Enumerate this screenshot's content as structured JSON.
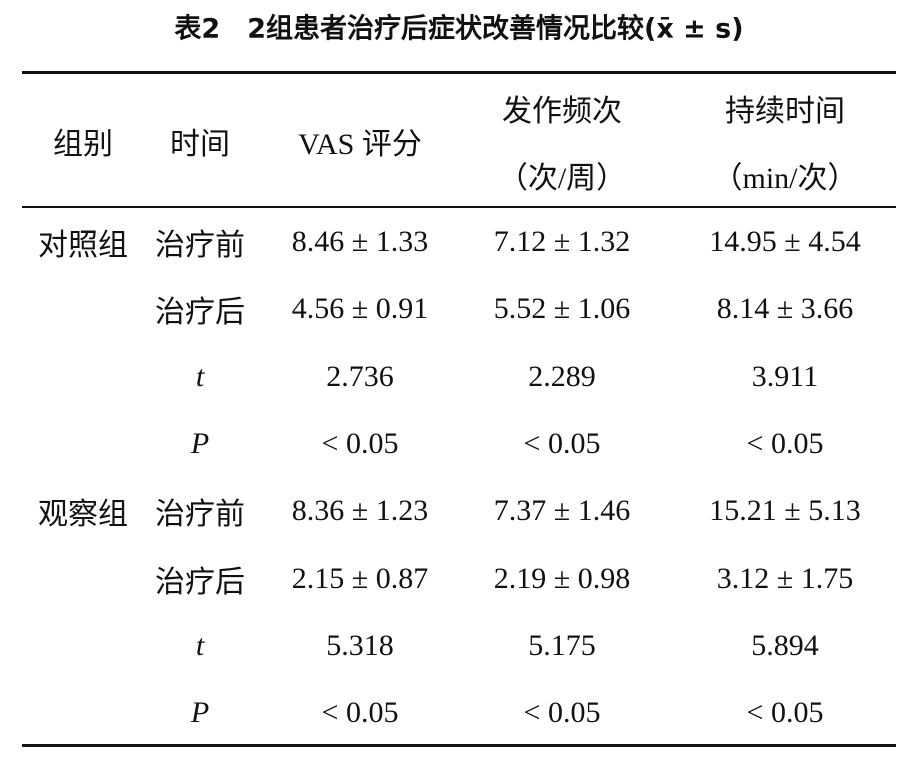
{
  "title": "表2　2组患者治疗后症状改善情况比较(x̄ ± s)",
  "table": {
    "header": {
      "group": "组别",
      "time": "时间",
      "vas": "VAS 评分",
      "freq": [
        "发作频次",
        "（次/周）"
      ],
      "dur": [
        "持续时间",
        "（min/次）"
      ]
    },
    "groups": [
      {
        "name": "对照组",
        "rows": [
          [
            "治疗前",
            "8.46 ± 1.33",
            "7.12 ± 1.32",
            "14.95 ± 4.54"
          ],
          [
            "治疗后",
            "4.56 ± 0.91",
            "5.52 ± 1.06",
            "8.14 ± 3.66"
          ],
          [
            "t",
            "2.736",
            "2.289",
            "3.911"
          ],
          [
            "P",
            "< 0.05",
            "< 0.05",
            "< 0.05"
          ]
        ]
      },
      {
        "name": "观察组",
        "rows": [
          [
            "治疗前",
            "8.36 ± 1.23",
            "7.37 ± 1.46",
            "15.21 ± 5.13"
          ],
          [
            "治疗后",
            "2.15 ± 0.87",
            "2.19 ± 0.98",
            "3.12 ± 1.75"
          ],
          [
            "t",
            "5.318",
            "5.175",
            "5.894"
          ],
          [
            "P",
            "< 0.05",
            "< 0.05",
            "< 0.05"
          ]
        ]
      }
    ]
  }
}
